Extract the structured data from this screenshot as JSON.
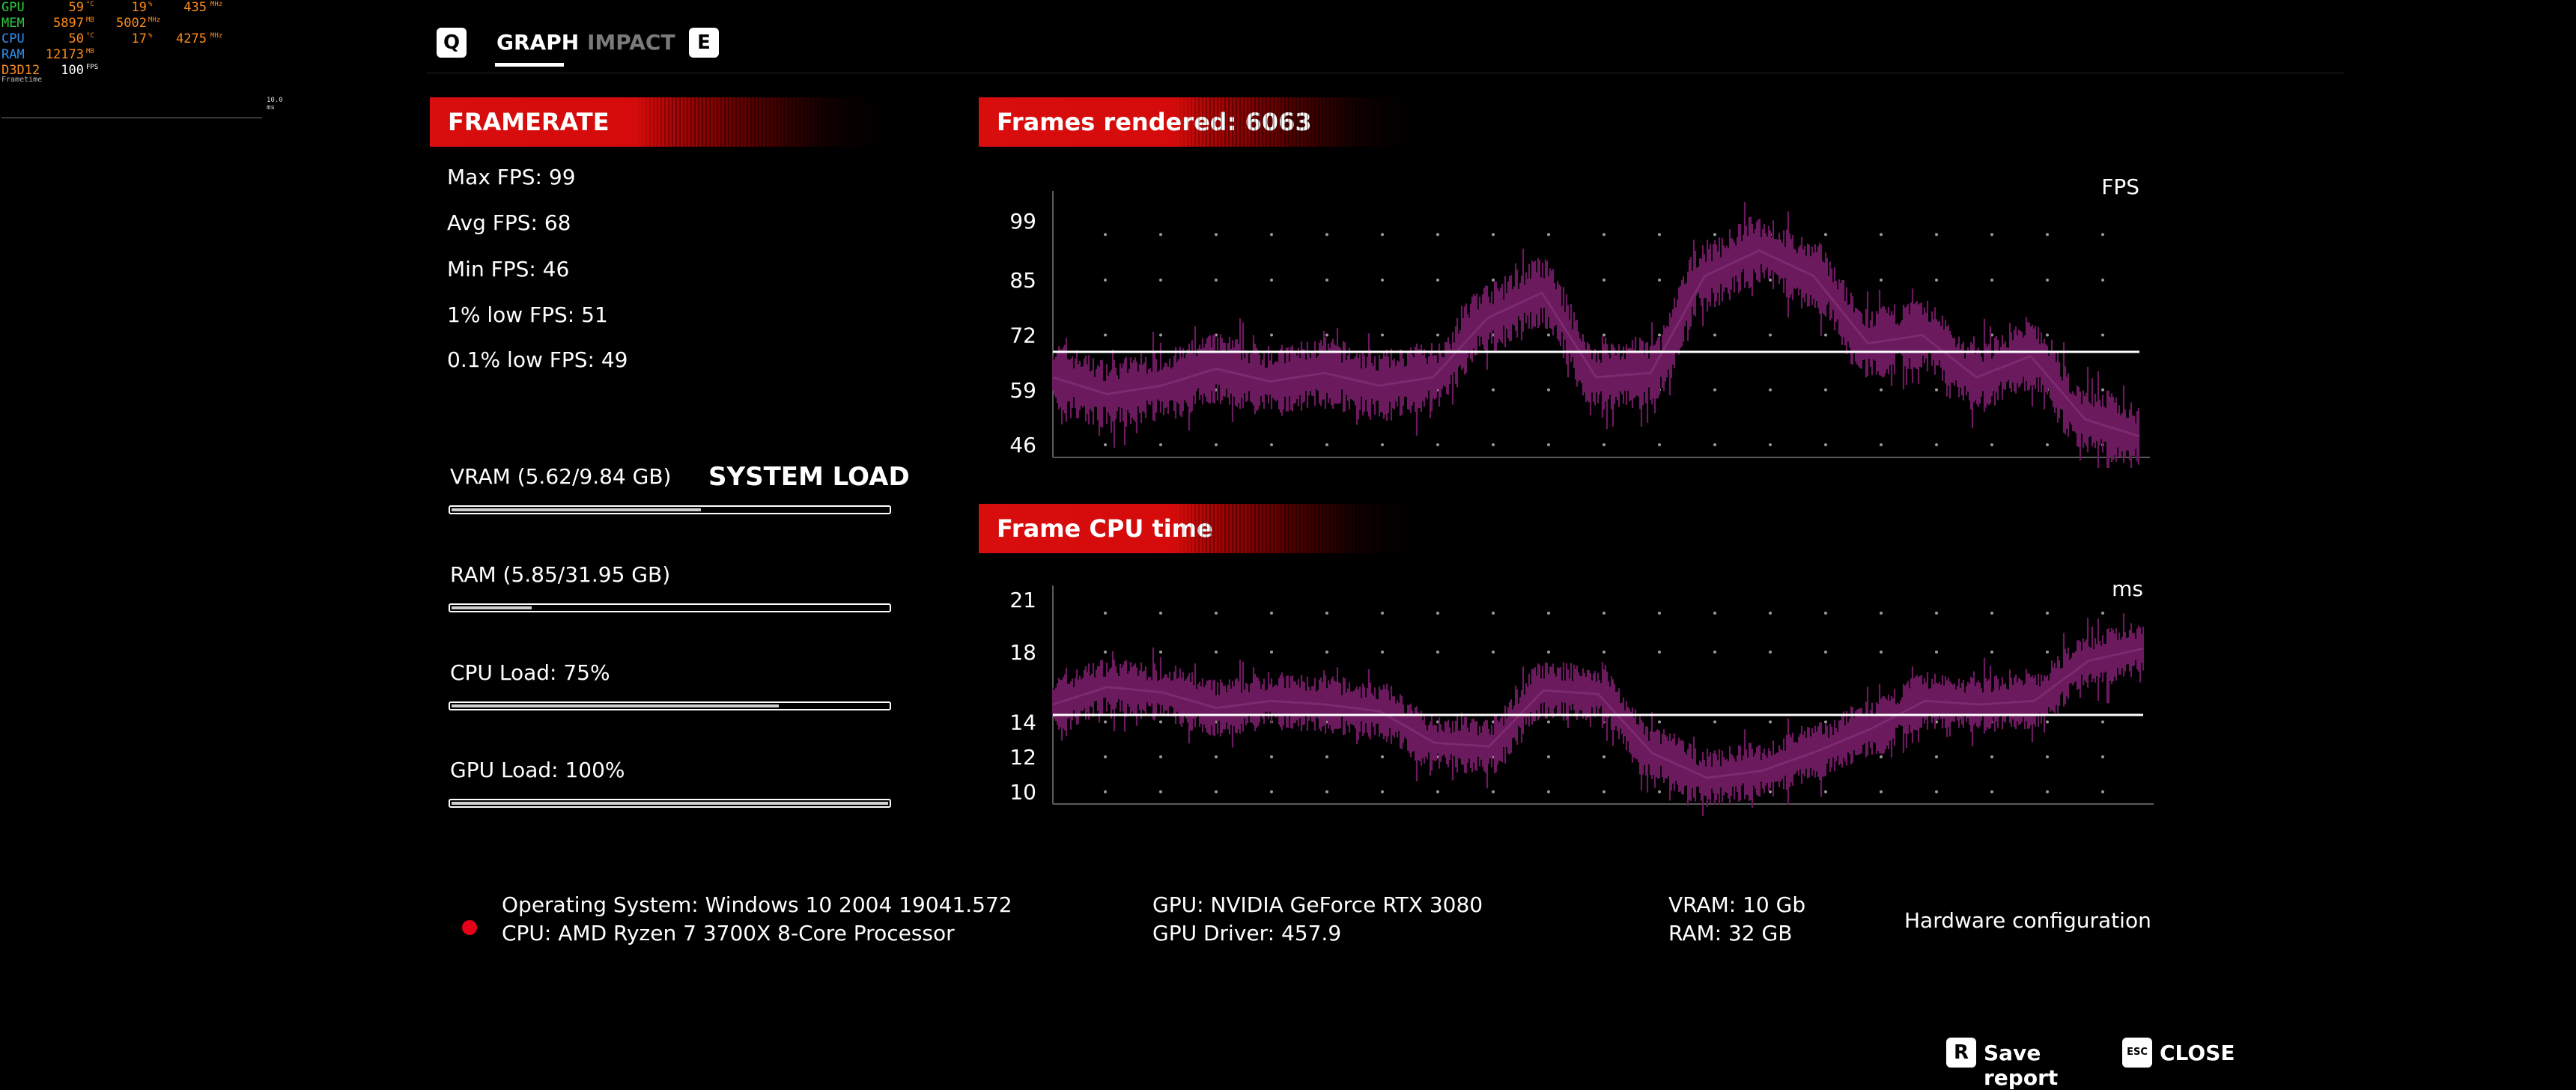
{
  "osd": {
    "rows": [
      {
        "label": "GPU",
        "label_color": "#2ecc40",
        "v1": "59",
        "u1": "°C",
        "v2": "19",
        "u2": "%",
        "v3": "435",
        "u3": "MHz"
      },
      {
        "label": "MEM",
        "label_color": "#2ecc40",
        "v1": "5897",
        "u1": "MB",
        "v2": "5002",
        "u2": "MHz",
        "v3": "",
        "u3": ""
      },
      {
        "label": "CPU",
        "label_color": "#2f8ff0",
        "v1": "50",
        "u1": "°C",
        "v2": "17",
        "u2": "%",
        "v3": "4275",
        "u3": "MHz"
      },
      {
        "label": "RAM",
        "label_color": "#2f8ff0",
        "v1": "12173",
        "u1": "MB",
        "v2": "",
        "u2": "",
        "v3": "",
        "u3": ""
      },
      {
        "label": "D3D12",
        "label_color": "#ff8c1a",
        "v1": "100",
        "u1": "FPS",
        "v2": "",
        "u2": "",
        "v3": "",
        "u3": ""
      }
    ],
    "frametime_label": "Frametime",
    "frametime_value": "10.0 ms"
  },
  "tabs": {
    "prev_key": "Q",
    "next_key": "E",
    "items": [
      {
        "label": "GRAPH"
      },
      {
        "label": "IMPACT"
      }
    ]
  },
  "framerate": {
    "title": "FRAMERATE",
    "stats": [
      {
        "label": "Max FPS: 99"
      },
      {
        "label": "Avg FPS: 68"
      },
      {
        "label": "Min FPS: 46"
      },
      {
        "label": "1% low FPS: 51"
      },
      {
        "label": "0.1% low FPS: 49"
      }
    ]
  },
  "system_load": {
    "title": "SYSTEM LOAD",
    "items": [
      {
        "label": "VRAM (5.62/9.84 GB)",
        "fraction": 0.571
      },
      {
        "label": "RAM (5.85/31.95 GB)",
        "fraction": 0.183
      },
      {
        "label": "CPU Load: 75%",
        "fraction": 0.75
      },
      {
        "label": "GPU Load: 100%",
        "fraction": 1.0
      }
    ]
  },
  "charts": {
    "fps_title": "Frames rendered: 6063",
    "cpu_title": "Frame CPU time"
  },
  "chart_data": [
    {
      "type": "line",
      "title": "Frames rendered: 6063",
      "ylabel": "FPS",
      "yticks": [
        99,
        85,
        72,
        59,
        46
      ],
      "ylim": [
        43,
        104
      ],
      "average": 68,
      "color": "#6b1a5e",
      "average_color": "#ffffff",
      "grid": "dots",
      "x": [
        0,
        5,
        10,
        15,
        20,
        25,
        30,
        35,
        40,
        45,
        50,
        55,
        60,
        65,
        70,
        75,
        80,
        85,
        90,
        95,
        100
      ],
      "values": [
        62,
        58,
        60,
        64,
        61,
        63,
        60,
        62,
        76,
        82,
        62,
        63,
        86,
        92,
        86,
        70,
        72,
        62,
        67,
        52,
        48
      ]
    },
    {
      "type": "line",
      "title": "Frame CPU time",
      "ylabel": "ms",
      "yticks": [
        21,
        18,
        14,
        12,
        10
      ],
      "ylim": [
        9.3,
        21.3
      ],
      "average": 14.4,
      "color": "#6b1a5e",
      "average_color": "#ffffff",
      "grid": "dots",
      "x": [
        0,
        5,
        10,
        15,
        20,
        25,
        30,
        35,
        40,
        45,
        50,
        55,
        60,
        65,
        70,
        75,
        80,
        85,
        90,
        95,
        100
      ],
      "values": [
        15.0,
        16.0,
        15.7,
        14.8,
        15.2,
        15.0,
        14.6,
        12.8,
        12.6,
        15.8,
        15.6,
        12.2,
        10.8,
        11.2,
        12.3,
        13.6,
        15.2,
        15.0,
        15.2,
        17.5,
        18.2
      ]
    }
  ],
  "hardware": {
    "os": "Operating System: Windows 10 2004 19041.572",
    "cpu": "CPU: AMD Ryzen 7 3700X 8-Core Processor",
    "gpu": "GPU: NVIDIA GeForce RTX 3080",
    "gpu_driver": "GPU Driver: 457.9",
    "vram": "VRAM: 10 Gb",
    "ram": "RAM: 32 GB",
    "config_label": "Hardware configuration"
  },
  "actions": {
    "save_key": "R",
    "save_label": "Save report",
    "close_key": "ESC",
    "close_label": "CLOSE"
  }
}
